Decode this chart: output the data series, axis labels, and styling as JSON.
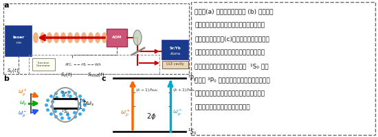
{
  "bg_color": "#ffffff",
  "text_line1": "图示：(a) 实验的装置示意图 (b) 通过对晶",
  "text_line2": "格激光进行周期性驱动，可以在原子周围产",
  "text_line3": "生弗洛凱准粒子。(c)钟激光上的周期性驱动",
  "text_line4": "导致两条通道产生，从而通过不同过程，原",
  "text_line5": "子可以借助弗洛凱准粒子辅助从  ¹S₀ 能级",
  "text_line6": "跃迁到 ³P₀ 能级。由于两个过程之间存在与",
  "text_line7": "初始过程相关的相对相位差，从而会发生不",
  "text_line8": "同弗洛凱准粒子之间的干涉效应。",
  "dashed_border": "#666666",
  "laser_color": "#F0A060",
  "arrow_red": "#CC0000",
  "box_blue": "#1a3a8a",
  "box_pink": "#cc5577",
  "atom_dots_color": "#33aaee",
  "atom_ellipse_color": "#aaaaaa",
  "omega_green": "#00aa00",
  "omega_orange": "#FF6600",
  "omega_blue": "#2255FF",
  "omega_cyan": "#00AACC",
  "level_color": "#111111"
}
